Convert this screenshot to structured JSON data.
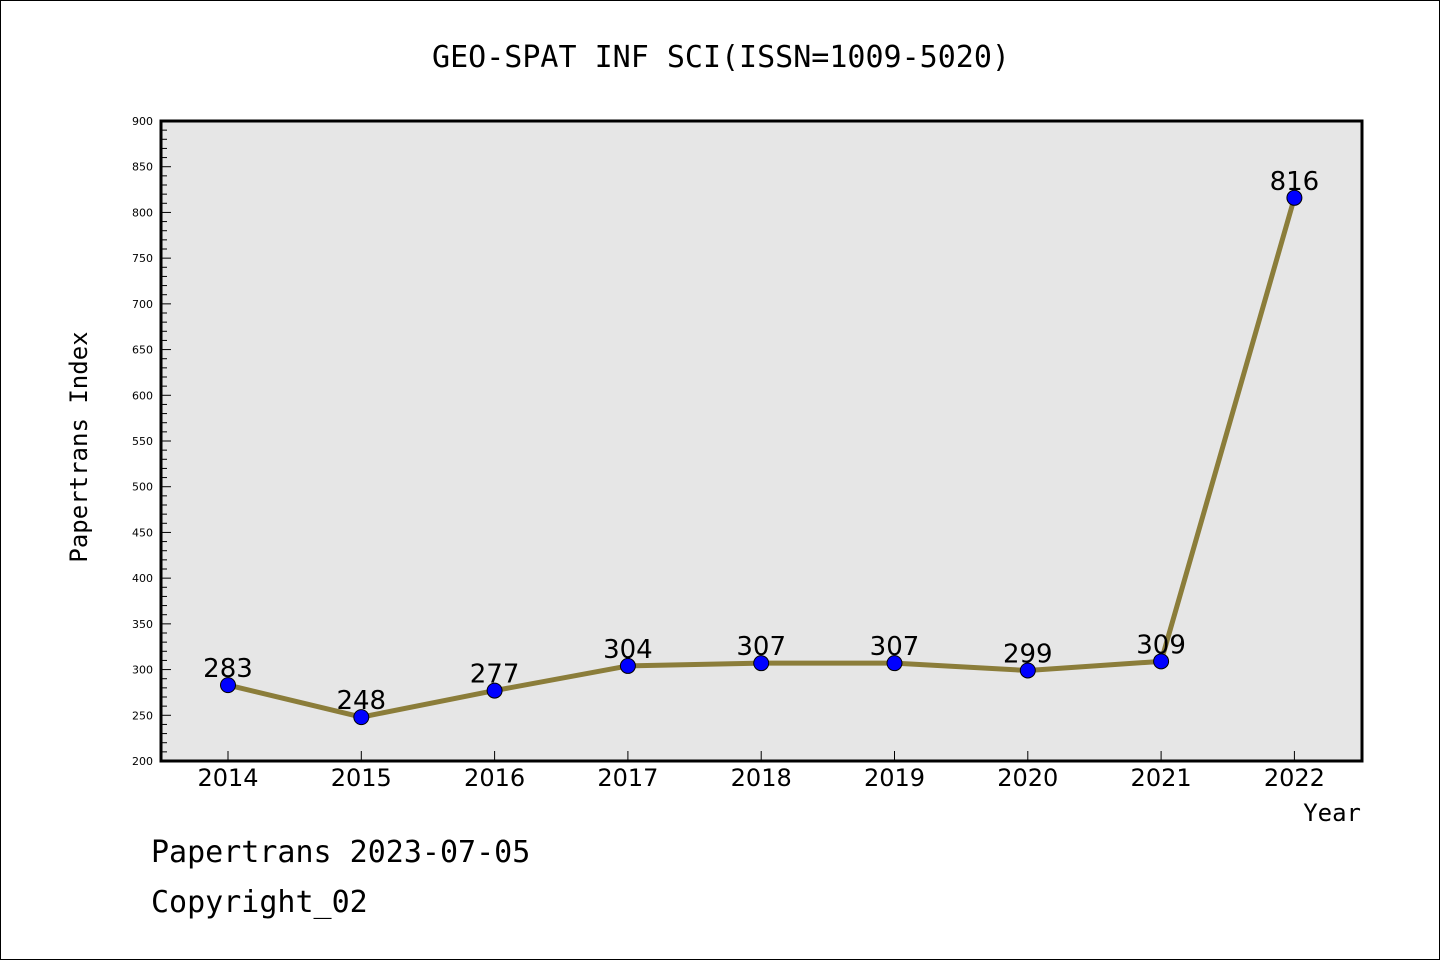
{
  "chart_data": {
    "type": "line",
    "title": "GEO-SPAT INF SCI(ISSN=1009-5020)",
    "xlabel": "Year",
    "ylabel": "Papertrans Index",
    "categories": [
      "2014",
      "2015",
      "2016",
      "2017",
      "2018",
      "2019",
      "2020",
      "2021",
      "2022"
    ],
    "series": [
      {
        "values": [
          283,
          248,
          277,
          304,
          307,
          307,
          299,
          309,
          816
        ]
      }
    ],
    "ylim": [
      200,
      900
    ],
    "yticks": [
      200,
      250,
      300,
      350,
      400,
      450,
      500,
      550,
      600,
      650,
      700,
      750,
      800,
      850,
      900
    ],
    "grid": false,
    "colors": {
      "line": "#8b7d3a",
      "marker": "#0000ff",
      "plot_bg": "#e6e6e6"
    }
  },
  "footer": {
    "line1": "Papertrans 2023-07-05",
    "line2": "Copyright_02"
  }
}
